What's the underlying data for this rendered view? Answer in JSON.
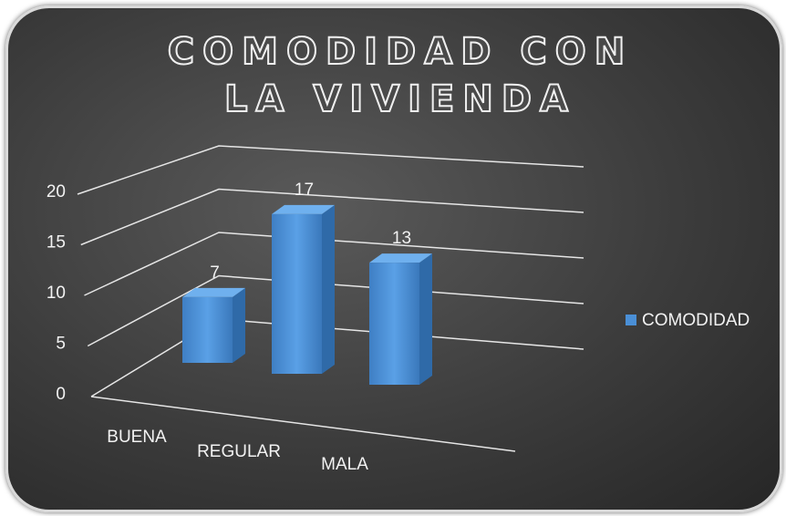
{
  "chart_data": {
    "type": "bar3d",
    "title": "COMODIDAD CON LA VIVIENDA",
    "categories": [
      "BUENA",
      "REGULAR",
      "MALA"
    ],
    "series": [
      {
        "name": "COMODIDAD",
        "color": "#4a8fd6",
        "values": [
          7,
          17,
          13
        ]
      }
    ],
    "ylim": [
      0,
      20
    ],
    "yticks": [
      0,
      5,
      10,
      15,
      20
    ],
    "grid": true,
    "legend": "right"
  }
}
